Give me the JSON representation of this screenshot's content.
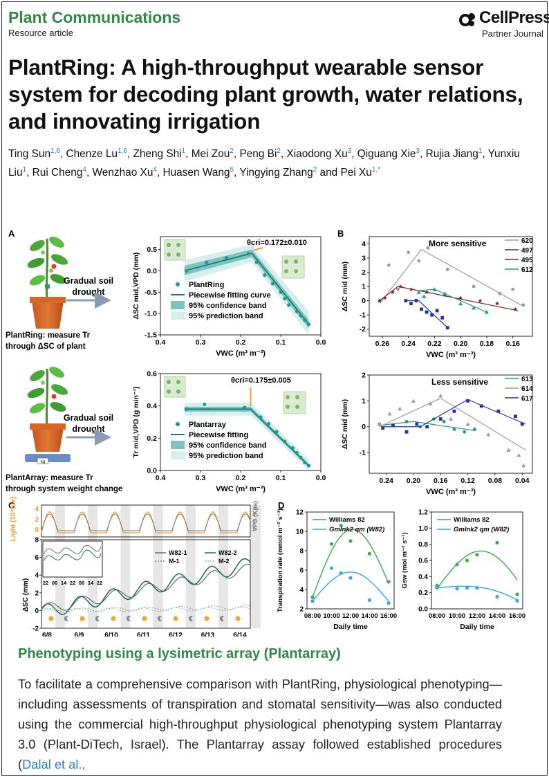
{
  "header": {
    "journal": "Plant Communications",
    "article_type": "Resource article",
    "publisher": "CellPress",
    "publisher_sub": "Partner Journal"
  },
  "title": "PlantRing: A high-throughput wearable sensor system for decoding plant growth, water relations, and innovating irrigation",
  "authors": [
    {
      "name": "Ting Sun",
      "aff": "1,6"
    },
    {
      "name": "Chenze Lu",
      "aff": "1,6"
    },
    {
      "name": "Zheng Shi",
      "aff": "1"
    },
    {
      "name": "Mei Zou",
      "aff": "2"
    },
    {
      "name": "Peng Bi",
      "aff": "2"
    },
    {
      "name": "Xiaodong Xu",
      "aff": "3"
    },
    {
      "name": "Qiguang Xie",
      "aff": "3"
    },
    {
      "name": "Rujia Jiang",
      "aff": "1"
    },
    {
      "name": "Yunxiu Liu",
      "aff": "1"
    },
    {
      "name": "Rui Cheng",
      "aff": "4"
    },
    {
      "name": "Wenzhao Xu",
      "aff": "4"
    },
    {
      "name": "Huasen Wang",
      "aff": "5"
    },
    {
      "name": "Yingying Zhang",
      "aff": "2"
    },
    {
      "name": "Pei Xu",
      "aff": "1,*"
    }
  ],
  "figure": {
    "panel_a_label": "A",
    "panel_b_label": "B",
    "panel_c_label": "C",
    "panel_d_label": "D",
    "drought_label_1": "Gradual soil",
    "drought_label_2": "drought",
    "plantring_caption_1": "PlantRing: measure Tr",
    "plantring_caption_2": "through ΔSC of plant",
    "plantarray_caption_1": "PlantArray: measure Tr",
    "plantarray_caption_2": "through system weight change",
    "scale_label": "kg"
  },
  "chart_data": [
    {
      "type": "scatter",
      "panel": "A-top",
      "xlabel": "VWC (m³ m⁻³)",
      "ylabel": "ΔSC mid,VPD (mm)",
      "xlim": [
        0.4,
        0.0
      ],
      "ylim": [
        -1.5,
        0.8
      ],
      "xticks": [
        "0.4",
        "0.3",
        "0.2",
        "0.1",
        "0.0"
      ],
      "yticks": [
        "0.5",
        "0.0",
        "-0.5",
        "-1.0",
        "-1.5"
      ],
      "annotation": "θcri=0.172±0.010",
      "legend": [
        "PlantRing",
        "Piecewise fitting curve",
        "95% confidence band",
        "95% prediction band"
      ],
      "points": [
        [
          0.335,
          0.0
        ],
        [
          0.285,
          0.2
        ],
        [
          0.235,
          0.3
        ],
        [
          0.18,
          0.4
        ],
        [
          0.16,
          0.2
        ],
        [
          0.14,
          -0.1
        ],
        [
          0.12,
          -0.3
        ],
        [
          0.1,
          -0.5
        ],
        [
          0.09,
          -0.65
        ],
        [
          0.08,
          -0.8
        ],
        [
          0.06,
          -0.95
        ],
        [
          0.05,
          -1.05
        ],
        [
          0.04,
          -1.15
        ],
        [
          0.03,
          -1.25
        ]
      ]
    },
    {
      "type": "scatter",
      "panel": "A-bottom",
      "xlabel": "VWC (m³ m⁻³)",
      "ylabel": "Tr mid,VPD (g min⁻¹)",
      "xlim": [
        0.4,
        0.0
      ],
      "ylim": [
        0.0,
        0.6
      ],
      "xticks": [
        "0.4",
        "0.3",
        "0.2",
        "0.1",
        "0.0"
      ],
      "yticks": [
        "0.6",
        "0.4",
        "0.2",
        "0.0"
      ],
      "annotation": "θcri=0.175±0.005",
      "legend": [
        "Plantarray",
        "Piecewise fitting",
        "95% confidence band",
        "95% prediction band"
      ],
      "points": [
        [
          0.335,
          0.38
        ],
        [
          0.29,
          0.41
        ],
        [
          0.19,
          0.39
        ],
        [
          0.15,
          0.33
        ],
        [
          0.13,
          0.29
        ],
        [
          0.11,
          0.24
        ],
        [
          0.09,
          0.18
        ],
        [
          0.07,
          0.14
        ],
        [
          0.06,
          0.11
        ],
        [
          0.05,
          0.08
        ],
        [
          0.04,
          0.05
        ],
        [
          0.03,
          0.03
        ]
      ]
    },
    {
      "type": "scatter",
      "panel": "B-top",
      "xlabel": "VWC (m³ m⁻³)",
      "ylabel": "ΔSC mid (mm)",
      "xlim": [
        0.27,
        0.145
      ],
      "ylim": [
        -2.5,
        4.5
      ],
      "xticks": [
        "0.26",
        "0.24",
        "0.22",
        "0.20",
        "0.18",
        "0.16"
      ],
      "yticks": [
        "4",
        "3",
        "2",
        "1",
        "0",
        "-1",
        "-2"
      ],
      "annotation": "More sensitive",
      "series": [
        {
          "name": "620",
          "color": "#9a9a9a",
          "points": [
            [
              0.262,
              0.0
            ],
            [
              0.255,
              2.5
            ],
            [
              0.248,
              0.8
            ],
            [
              0.24,
              3.4
            ],
            [
              0.232,
              2.8
            ],
            [
              0.225,
              3.7
            ],
            [
              0.21,
              2.2
            ],
            [
              0.19,
              1.0
            ],
            [
              0.17,
              0.5
            ],
            [
              0.16,
              0.8
            ],
            [
              0.152,
              -0.3
            ]
          ]
        },
        {
          "name": "497",
          "color": "#7a2020",
          "points": [
            [
              0.262,
              0.0
            ],
            [
              0.258,
              0.2
            ],
            [
              0.252,
              0.6
            ],
            [
              0.246,
              1.0
            ],
            [
              0.238,
              0.8
            ],
            [
              0.226,
              0.6
            ],
            [
              0.212,
              0.4
            ],
            [
              0.2,
              0.2
            ],
            [
              0.185,
              0.0
            ],
            [
              0.172,
              -0.2
            ],
            [
              0.158,
              -0.6
            ]
          ]
        },
        {
          "name": "495",
          "color": "#2433a0",
          "points": [
            [
              0.242,
              0.0
            ],
            [
              0.238,
              -0.2
            ],
            [
              0.234,
              0.0
            ],
            [
              0.23,
              -0.6
            ],
            [
              0.226,
              -0.8
            ],
            [
              0.222,
              -1.0
            ],
            [
              0.218,
              -0.7
            ],
            [
              0.214,
              -1.2
            ],
            [
              0.21,
              -1.9
            ]
          ]
        },
        {
          "name": "612",
          "color": "#1f9a8a",
          "points": [
            [
              0.232,
              0.6
            ],
            [
              0.228,
              0.3
            ],
            [
              0.22,
              0.8
            ],
            [
              0.212,
              0.5
            ],
            [
              0.2,
              -0.2
            ],
            [
              0.19,
              -0.5
            ],
            [
              0.18,
              -0.8
            ]
          ]
        }
      ]
    },
    {
      "type": "scatter",
      "panel": "B-bottom",
      "xlabel": "VWC (m³ m⁻³)",
      "ylabel": "ΔSC mid (mm)",
      "xlim": [
        0.265,
        0.025
      ],
      "ylim": [
        -1.8,
        2.0
      ],
      "xticks": [
        "0.24",
        "0.20",
        "0.16",
        "0.12",
        "0.08",
        "0.04"
      ],
      "yticks": [
        "2",
        "1",
        "0",
        "-1"
      ],
      "annotation": "Less sensitive",
      "series": [
        {
          "name": "613",
          "color": "#1f9a8a",
          "points": [
            [
              0.25,
              0.1
            ],
            [
              0.23,
              0.05
            ],
            [
              0.21,
              0.2
            ],
            [
              0.19,
              0.0
            ],
            [
              0.17,
              0.3
            ],
            [
              0.155,
              0.2
            ],
            [
              0.14,
              -0.1
            ],
            [
              0.125,
              -0.2
            ],
            [
              0.11,
              -0.1
            ]
          ]
        },
        {
          "name": "614",
          "color": "#9a9a9a",
          "points": [
            [
              0.25,
              0.1
            ],
            [
              0.235,
              0.5
            ],
            [
              0.22,
              0.7
            ],
            [
              0.2,
              1.0
            ],
            [
              0.175,
              0.9
            ],
            [
              0.16,
              1.2
            ],
            [
              0.145,
              0.3
            ],
            [
              0.12,
              0.1
            ],
            [
              0.09,
              -0.3
            ],
            [
              0.06,
              -0.9
            ],
            [
              0.045,
              -1.1
            ],
            [
              0.038,
              -1.5
            ]
          ]
        },
        {
          "name": "617",
          "color": "#2433a0",
          "points": [
            [
              0.245,
              -0.05
            ],
            [
              0.23,
              0.05
            ],
            [
              0.21,
              -0.2
            ],
            [
              0.195,
              0.1
            ],
            [
              0.18,
              0.0
            ],
            [
              0.16,
              0.3
            ],
            [
              0.14,
              0.6
            ],
            [
              0.12,
              1.0
            ],
            [
              0.1,
              0.8
            ],
            [
              0.075,
              0.6
            ],
            [
              0.05,
              0.4
            ],
            [
              0.04,
              0.1
            ]
          ]
        }
      ]
    },
    {
      "type": "line",
      "panel": "C",
      "xlabel": "Date",
      "ylabel": "ΔSC (mm)",
      "ylabel_top_left": "Light (10⁴lux)",
      "ylabel_top_right": "VPD (Kpa)",
      "ylim": [
        -2,
        8
      ],
      "yticks": [
        "8",
        "6",
        "4",
        "2",
        "0",
        "-2"
      ],
      "top_yticks_left": [
        "4",
        "2",
        "0"
      ],
      "top_yticks_right": [
        "6",
        "4",
        "2",
        "0"
      ],
      "xticks": [
        "6/8",
        "6/9",
        "6/10",
        "6/11",
        "6/12",
        "6/13",
        "6/14"
      ],
      "inset_xticks": [
        "22",
        "06",
        "14",
        "22",
        "06",
        "14",
        "22"
      ],
      "legend": [
        "W82-1",
        "W82-2",
        "M-1",
        "M-2"
      ]
    },
    {
      "type": "scatter",
      "panel": "D-left",
      "xlabel": "Daily time",
      "ylabel": "Transpiration rate (mmol m⁻² s⁻¹)",
      "ylim": [
        2,
        12
      ],
      "yticks": [
        "12",
        "10",
        "8",
        "6",
        "4",
        "2"
      ],
      "xticks": [
        "08:00",
        "10:00",
        "12:00",
        "14:00",
        "16:00"
      ],
      "legend": [
        "Williams 82",
        "GmInk2 qm (W82)"
      ],
      "series": [
        {
          "name": "Williams 82",
          "color": "#3aab4a",
          "x": [
            "08:00",
            "09:00",
            "10:00",
            "11:00",
            "12:00",
            "13:00",
            "14:00",
            "15:00",
            "16:00"
          ],
          "values": [
            3.2,
            null,
            8.7,
            10.6,
            9.0,
            null,
            7.7,
            null,
            4.8
          ]
        },
        {
          "name": "GmInk2 qm (W82)",
          "color": "#34a7e0",
          "x": [
            "08:00",
            "09:00",
            "10:00",
            "11:00",
            "12:00",
            "13:00",
            "14:00",
            "15:00",
            "16:00"
          ],
          "values": [
            2.8,
            null,
            6.2,
            5.7,
            5.2,
            null,
            2.9,
            null,
            2.6
          ]
        }
      ]
    },
    {
      "type": "scatter",
      "panel": "D-right",
      "xlabel": "Daily time",
      "ylabel": "Gsw (mol m⁻² s⁻¹)",
      "ylim": [
        0.0,
        1.2
      ],
      "yticks": [
        "1.2",
        "1.0",
        "0.8",
        "0.6",
        "0.4",
        "0.2",
        "0.0"
      ],
      "xticks": [
        "08:00",
        "10:00",
        "12:00",
        "14:00",
        "16:00"
      ],
      "legend": [
        "Williams 82",
        "GmInk2 qm (W82)"
      ],
      "series": [
        {
          "name": "Williams 82",
          "color": "#3aab4a",
          "x": [
            "08:00",
            "10:00",
            "11:00",
            "12:00",
            "14:00",
            "16:00"
          ],
          "values": [
            0.29,
            0.55,
            0.6,
            0.67,
            0.82,
            0.18
          ]
        },
        {
          "name": "GmInk2 qm (W82)",
          "color": "#34a7e0",
          "x": [
            "08:00",
            "10:00",
            "11:00",
            "12:00",
            "14:00",
            "16:00"
          ],
          "values": [
            0.26,
            0.25,
            0.26,
            0.26,
            0.15,
            0.1
          ]
        }
      ]
    }
  ],
  "section": {
    "heading": "Phenotyping using a lysimetric array (Plantarray)",
    "text": "To facilitate a comprehensive comparison with PlantRing, physiological phenotyping—including assessments of transpiration and stomatal sensitivity—was also conducted using the commercial high-throughput physiological phenotyping system Plantarray 3.0 (Plant-DiTech, Israel). The Plantarray assay followed established procedures (",
    "citation": "Dalal et al.,"
  }
}
